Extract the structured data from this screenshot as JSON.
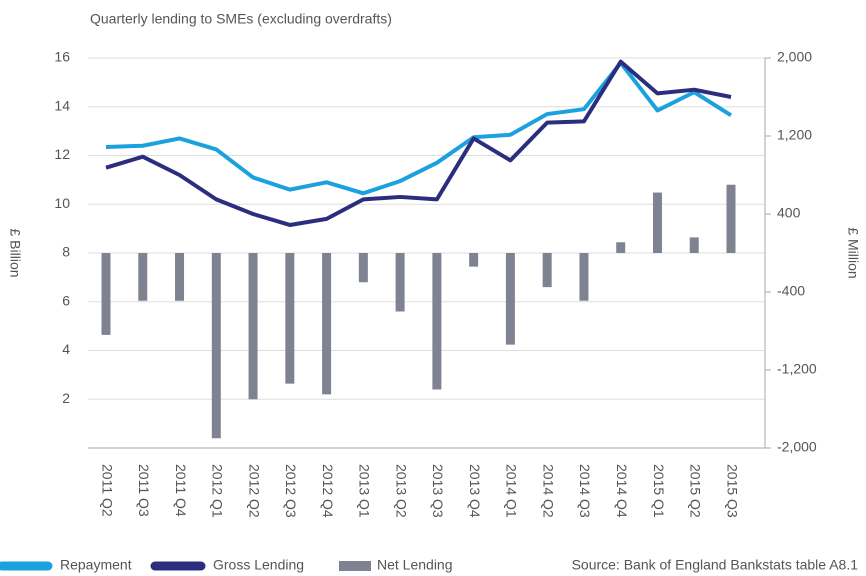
{
  "chart_data": {
    "type": "line",
    "title": "Quarterly lending to SMEs (excluding overdrafts)",
    "ylabel": "£ Billion",
    "y2label": "£ Million",
    "source": "Source: Bank of England Bankstats table A8.1",
    "categories": [
      "2011 Q2",
      "2011 Q3",
      "2011 Q4",
      "2012 Q1",
      "2012 Q2",
      "2012 Q3",
      "2012 Q4",
      "2013 Q1",
      "2013 Q2",
      "2013 Q3",
      "2013 Q4",
      "2014 Q1",
      "2014 Q2",
      "2014 Q3",
      "2014 Q4",
      "2015 Q1",
      "2015 Q2",
      "2015 Q3"
    ],
    "series": [
      {
        "name": "Repayment",
        "color": "#1ba1dd",
        "type": "line",
        "values": [
          12.35,
          12.4,
          12.7,
          12.25,
          11.1,
          10.6,
          10.9,
          10.45,
          10.95,
          11.7,
          12.75,
          12.85,
          13.7,
          13.9,
          15.8,
          13.85,
          14.6,
          13.65
        ]
      },
      {
        "name": "Gross Lending",
        "color": "#2b2e7f",
        "type": "line",
        "values": [
          11.5,
          11.95,
          11.2,
          10.2,
          9.6,
          9.15,
          9.4,
          10.2,
          10.3,
          10.2,
          12.7,
          11.8,
          13.35,
          13.4,
          15.85,
          14.55,
          14.7,
          14.4
        ]
      },
      {
        "name": "Net Lending",
        "color": "#7f8391",
        "type": "bar",
        "axis": "y2",
        "values": [
          -840,
          -490,
          -490,
          -1900,
          -1500,
          -1340,
          -1450,
          -300,
          -600,
          -1400,
          -140,
          -940,
          -350,
          -490,
          110,
          620,
          160,
          700
        ]
      }
    ],
    "ylim": [
      0,
      16
    ],
    "yticks": [
      2,
      4,
      6,
      8,
      10,
      12,
      14,
      16
    ],
    "y2lim": [
      -2000,
      2000
    ],
    "y2ticks": [
      {
        "value": 2000,
        "label": "2,000"
      },
      {
        "value": 1200,
        "label": "1,200"
      },
      400,
      -400,
      {
        "value": -1200,
        "label": "-1,200"
      },
      {
        "value": -2000,
        "label": "-2,000"
      }
    ],
    "grid": true,
    "legend": "bottom"
  }
}
